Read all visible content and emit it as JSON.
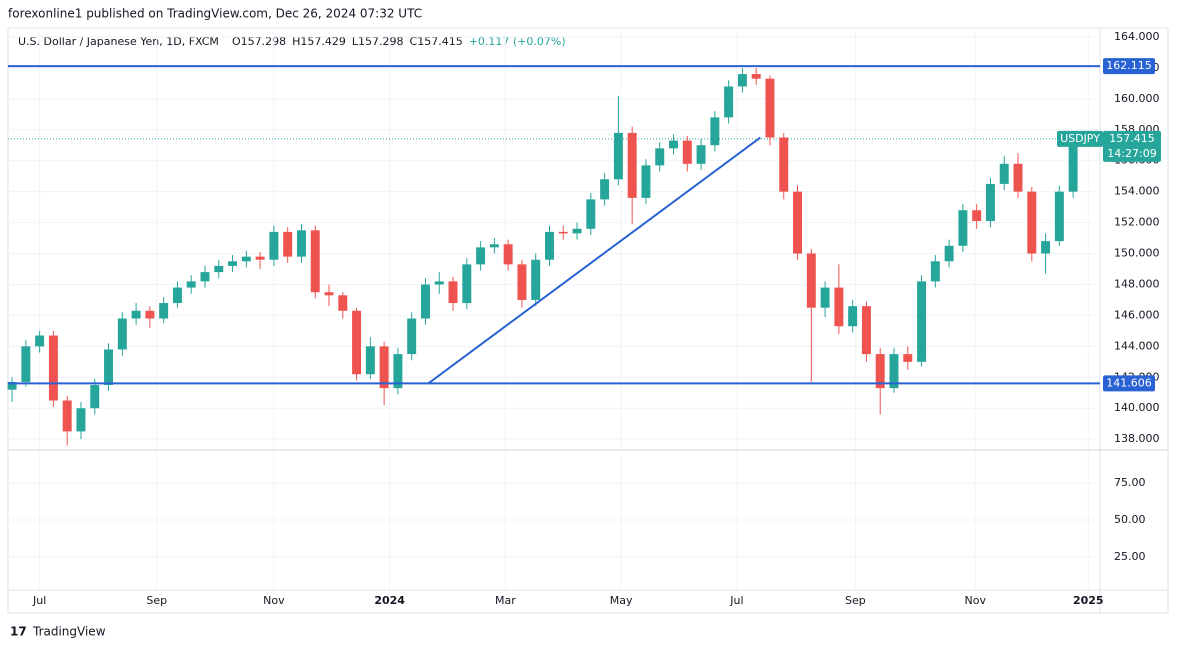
{
  "header": {
    "publisher": "forexonline1 published on TradingView.com, Dec 26, 2024 07:32 UTC"
  },
  "legend": {
    "name": "U.S. Dollar / Japanese Yen, 1D, FXCM",
    "ohlc": [
      "O157.298",
      "H157.429",
      "L157.298",
      "C157.415",
      "+0.117 (+0.07%)"
    ]
  },
  "footer": {
    "brand": "TradingView"
  },
  "chart_data": {
    "type": "candlestick",
    "up_color": "#26a69a",
    "down_color": "#ef5350",
    "line_color": "#2962d4",
    "xlim": [
      -0.15,
      78.95
    ],
    "xticks": [
      {
        "value": 2.0,
        "label": "Jul"
      },
      {
        "value": 10.5,
        "label": "Sep"
      },
      {
        "value": 19.0,
        "label": "Nov"
      },
      {
        "value": 27.4,
        "label": "2024"
      },
      {
        "value": 35.8,
        "label": "Mar"
      },
      {
        "value": 44.2,
        "label": "May"
      },
      {
        "value": 52.6,
        "label": "Jul"
      },
      {
        "value": 61.2,
        "label": "Sep"
      },
      {
        "value": 69.9,
        "label": "Nov"
      },
      {
        "value": 78.1,
        "label": "2025"
      }
    ],
    "ylim": [
      137.3,
      164.45
    ],
    "yticks": [
      {
        "value": 138,
        "label": "138.000"
      },
      {
        "value": 140,
        "label": "140.000"
      },
      {
        "value": 142,
        "label": "142.000"
      },
      {
        "value": 144,
        "label": "144.000"
      },
      {
        "value": 146,
        "label": "146.000"
      },
      {
        "value": 148,
        "label": "148.000"
      },
      {
        "value": 150,
        "label": "150.000"
      },
      {
        "value": 152,
        "label": "152.000"
      },
      {
        "value": 154,
        "label": "154.000"
      },
      {
        "value": 156,
        "label": "156.000"
      },
      {
        "value": 158,
        "label": "158.000"
      },
      {
        "value": 160,
        "label": "160.000"
      },
      {
        "value": 162,
        "label": "162.000"
      },
      {
        "value": 164,
        "label": "164.000"
      }
    ],
    "grid": true,
    "open": [
      141.2,
      141.7,
      144.0,
      144.7,
      140.5,
      138.5,
      140.0,
      141.5,
      143.8,
      145.8,
      146.3,
      145.8,
      146.8,
      147.8,
      148.2,
      148.8,
      149.2,
      149.5,
      149.8,
      149.6,
      151.4,
      149.8,
      151.5,
      147.5,
      147.3,
      146.3,
      142.2,
      144.0,
      141.3,
      143.5,
      145.8,
      148.0,
      148.2,
      146.8,
      149.3,
      150.4,
      150.6,
      149.3,
      147.0,
      149.6,
      151.4,
      151.3,
      151.6,
      153.5,
      154.8,
      157.8,
      153.6,
      155.7,
      156.8,
      157.3,
      155.8,
      157.0,
      158.8,
      160.8,
      161.6,
      161.3,
      157.5,
      154.0,
      150.0,
      146.5,
      147.8,
      145.3,
      146.6,
      143.5,
      141.3,
      143.5,
      143.0,
      148.2,
      149.5,
      150.5,
      152.8,
      152.1,
      154.5,
      155.8,
      154.0,
      150.0,
      150.8,
      154.0
    ],
    "high": [
      142.0,
      144.4,
      145.0,
      145.0,
      140.8,
      140.4,
      141.9,
      144.2,
      146.2,
      146.8,
      146.6,
      147.2,
      148.2,
      148.6,
      149.2,
      149.6,
      149.9,
      150.2,
      150.1,
      151.8,
      151.7,
      151.9,
      151.8,
      148.0,
      147.5,
      146.5,
      144.6,
      144.3,
      143.9,
      146.2,
      148.4,
      148.8,
      148.5,
      149.7,
      150.8,
      151.0,
      150.9,
      149.6,
      150.0,
      151.8,
      151.8,
      152.0,
      153.9,
      155.2,
      160.2,
      158.2,
      156.1,
      157.2,
      157.7,
      157.6,
      157.4,
      159.2,
      161.2,
      162.0,
      162.0,
      161.5,
      157.8,
      154.4,
      150.3,
      148.2,
      149.3,
      147.0,
      146.9,
      143.9,
      143.9,
      144.0,
      148.6,
      149.9,
      150.9,
      153.2,
      153.2,
      154.9,
      156.3,
      156.5,
      154.3,
      151.3,
      154.4,
      157.8
    ],
    "low": [
      140.4,
      141.4,
      143.6,
      140.1,
      137.6,
      138.0,
      139.6,
      141.1,
      143.4,
      145.4,
      145.2,
      145.5,
      146.5,
      147.4,
      147.8,
      148.4,
      148.8,
      149.1,
      149.0,
      149.2,
      149.4,
      149.4,
      147.1,
      146.6,
      145.8,
      141.8,
      141.9,
      140.2,
      140.9,
      143.1,
      145.4,
      147.4,
      146.3,
      146.4,
      148.9,
      150.0,
      148.9,
      146.5,
      146.6,
      149.2,
      150.9,
      150.9,
      151.2,
      153.1,
      154.4,
      151.9,
      153.2,
      155.3,
      156.4,
      155.3,
      155.4,
      156.6,
      158.4,
      160.4,
      160.9,
      157.0,
      153.5,
      149.6,
      141.7,
      145.9,
      144.8,
      144.9,
      143.0,
      139.6,
      141.0,
      142.5,
      142.7,
      147.8,
      149.1,
      150.1,
      151.6,
      151.7,
      154.1,
      153.6,
      149.5,
      148.7,
      150.5,
      153.6
    ],
    "close": [
      141.7,
      144.0,
      144.7,
      140.5,
      138.5,
      140.0,
      141.5,
      143.8,
      145.8,
      146.3,
      145.8,
      146.8,
      147.8,
      148.2,
      148.8,
      149.2,
      149.5,
      149.8,
      149.6,
      151.4,
      149.8,
      151.5,
      147.5,
      147.3,
      146.3,
      142.2,
      144.0,
      141.3,
      143.5,
      145.8,
      148.0,
      148.2,
      146.8,
      149.3,
      150.4,
      150.6,
      149.3,
      147.0,
      149.6,
      151.4,
      151.3,
      151.6,
      153.5,
      154.8,
      157.8,
      153.6,
      155.7,
      156.8,
      157.3,
      155.8,
      157.0,
      158.8,
      160.8,
      161.6,
      161.3,
      157.5,
      154.0,
      150.0,
      146.5,
      147.8,
      145.3,
      146.6,
      143.5,
      141.3,
      143.5,
      143.0,
      148.2,
      149.5,
      150.5,
      152.8,
      152.1,
      154.5,
      155.8,
      154.0,
      150.0,
      150.8,
      154.0,
      157.4
    ],
    "hlines": [
      162.115,
      141.606
    ],
    "trendline": {
      "x": [
        30.2,
        54.3
      ],
      "y": [
        141.6,
        157.5
      ]
    },
    "symbol": "USDJPY",
    "last_price": 157.415,
    "countdown": "14:27:09",
    "lower_pane": {
      "ylim": [
        2.7,
        97.3
      ],
      "yticks": [
        {
          "value": 25,
          "label": "25.00"
        },
        {
          "value": 50,
          "label": "50.00"
        },
        {
          "value": 75,
          "label": "75.00"
        }
      ]
    }
  }
}
